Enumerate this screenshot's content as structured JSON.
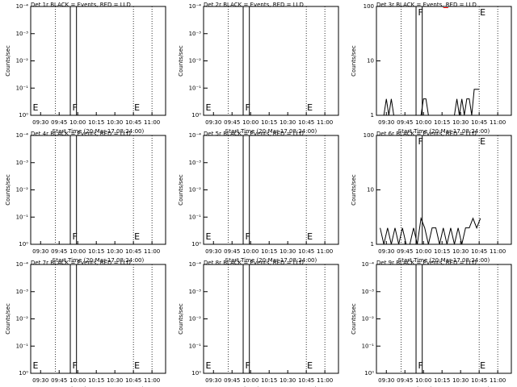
{
  "chart_data": [
    {
      "type": "line",
      "title": "Det 1r BLACK = Events, RED = LLD",
      "ylabel": "Counts/sec",
      "xlabel": "Start Time (20-Mar-17 08:24:00)",
      "xlim": [
        "09:22",
        "11:11"
      ],
      "xticks": [
        "09:30",
        "09:45",
        "10:00",
        "10:15",
        "10:30",
        "10:45",
        "11:00"
      ],
      "log": true,
      "ylim": [
        1,
        0.0001
      ],
      "yticks": [
        {
          "value": 1,
          "label": "10⁰"
        },
        {
          "value": 0.1,
          "label": "10⁻¹"
        },
        {
          "value": 0.01,
          "label": "10⁻²"
        },
        {
          "value": 0.001,
          "label": "10⁻³"
        },
        {
          "value": 0.0001,
          "label": "10⁻⁴"
        }
      ],
      "vlines": [
        {
          "x": "09:42",
          "style": "dotted"
        },
        {
          "x": "09:54",
          "style": "solid"
        },
        {
          "x": "09:59",
          "style": "solid"
        },
        {
          "x": "10:45",
          "style": "dotted"
        },
        {
          "x": "11:00",
          "style": "dotted"
        }
      ],
      "annotations": [
        {
          "text": "E",
          "x": "09:23",
          "position": "bottom"
        },
        {
          "text": "F",
          "x": "09:55",
          "position": "bottom"
        },
        {
          "text": "E",
          "x": "10:45",
          "position": "bottom"
        }
      ]
    },
    {
      "type": "line",
      "title": "Det 2r BLACK = Events, RED = LLD",
      "ylabel": "Counts/sec",
      "xlabel": "Start Time (20-Mar-17 08:24:00)",
      "xlim": [
        "09:22",
        "11:11"
      ],
      "xticks": [
        "09:30",
        "09:45",
        "10:00",
        "10:15",
        "10:30",
        "10:45",
        "11:00"
      ],
      "log": true,
      "ylim": [
        1,
        0.0001
      ],
      "yticks": [
        {
          "value": 1,
          "label": "10⁰"
        },
        {
          "value": 0.1,
          "label": "10⁻¹"
        },
        {
          "value": 0.01,
          "label": "10⁻²"
        },
        {
          "value": 0.001,
          "label": "10⁻³"
        },
        {
          "value": 0.0001,
          "label": "10⁻⁴"
        }
      ],
      "vlines": [
        {
          "x": "09:42",
          "style": "dotted"
        },
        {
          "x": "09:54",
          "style": "solid"
        },
        {
          "x": "09:59",
          "style": "solid"
        },
        {
          "x": "10:45",
          "style": "dotted"
        },
        {
          "x": "11:00",
          "style": "dotted"
        }
      ],
      "annotations": [
        {
          "text": "E",
          "x": "09:23",
          "position": "bottom"
        },
        {
          "text": "F",
          "x": "09:55",
          "position": "bottom"
        },
        {
          "text": "E",
          "x": "10:45",
          "position": "bottom"
        }
      ]
    },
    {
      "type": "line",
      "title": "Det 3r BLACK = Events, RED = LLD",
      "ylabel": "Counts/sec",
      "xlabel": "Start Time (20-Mar-17 08:24:00)",
      "xlim": [
        "09:22",
        "11:11"
      ],
      "xticks": [
        "09:30",
        "09:45",
        "10:00",
        "10:15",
        "10:30",
        "10:45",
        "11:00"
      ],
      "log": true,
      "ylim": [
        1,
        100
      ],
      "yticks": [
        1,
        10,
        100
      ],
      "vlines": [
        {
          "x": "09:42",
          "style": "dotted"
        },
        {
          "x": "09:54",
          "style": "solid"
        },
        {
          "x": "09:59",
          "style": "solid"
        },
        {
          "x": "10:45",
          "style": "dotted"
        },
        {
          "x": "11:00",
          "style": "dotted"
        }
      ],
      "annotations": [
        {
          "text": "F",
          "x": "09:55",
          "position": "top"
        },
        {
          "text": "E",
          "x": "10:45",
          "position": "top"
        }
      ],
      "x": [
        "09:28",
        "09:30",
        "09:32",
        "09:34",
        "09:36",
        "09:38",
        "09:58",
        "10:00",
        "10:02",
        "10:04",
        "10:16",
        "10:20",
        "10:25",
        "10:27",
        "10:29",
        "10:31",
        "10:33",
        "10:35",
        "10:37",
        "10:39",
        "10:41",
        "10:43",
        "10:45"
      ],
      "series": [
        {
          "color": "#000000",
          "values": [
            1,
            2,
            1,
            2,
            1,
            1,
            1,
            2,
            2,
            1,
            1,
            1,
            1,
            2,
            1,
            2,
            1,
            2,
            2,
            1,
            3,
            3,
            3
          ]
        },
        {
          "color": "#ff0000",
          "values": [
            null,
            null,
            null,
            null,
            null,
            null,
            null,
            null,
            null,
            null,
            95,
            95,
            null,
            null,
            null,
            null,
            null,
            null,
            null,
            null,
            null,
            null,
            null
          ]
        }
      ]
    },
    {
      "type": "line",
      "title": "Det 4r BLACK = Events, RED = LLD",
      "ylabel": "Counts/sec",
      "xlabel": "Start Time (20-Mar-17 08:24:00)",
      "xlim": [
        "09:22",
        "11:11"
      ],
      "xticks": [
        "09:30",
        "09:45",
        "10:00",
        "10:15",
        "10:30",
        "10:45",
        "11:00"
      ],
      "log": true,
      "ylim": [
        1,
        0.0001
      ],
      "yticks": [
        {
          "value": 1,
          "label": "10⁰"
        },
        {
          "value": 0.1,
          "label": "10⁻¹"
        },
        {
          "value": 0.01,
          "label": "10⁻²"
        },
        {
          "value": 0.001,
          "label": "10⁻³"
        },
        {
          "value": 0.0001,
          "label": "10⁻⁴"
        }
      ],
      "vlines": [
        {
          "x": "09:42",
          "style": "dotted"
        },
        {
          "x": "09:54",
          "style": "solid"
        },
        {
          "x": "09:59",
          "style": "solid"
        },
        {
          "x": "10:45",
          "style": "dotted"
        },
        {
          "x": "11:00",
          "style": "dotted"
        }
      ],
      "annotations": [
        {
          "text": "F",
          "x": "09:55",
          "position": "bottom"
        },
        {
          "text": "E",
          "x": "10:45",
          "position": "bottom"
        }
      ]
    },
    {
      "type": "line",
      "title": "Det 5r BLACK = Events, RED = LLD",
      "ylabel": "Counts/sec",
      "xlabel": "Start Time (20-Mar-17 08:24:00)",
      "xlim": [
        "09:22",
        "11:11"
      ],
      "xticks": [
        "09:30",
        "09:45",
        "10:00",
        "10:15",
        "10:30",
        "10:45",
        "11:00"
      ],
      "log": true,
      "ylim": [
        1,
        0.0001
      ],
      "yticks": [
        {
          "value": 1,
          "label": "10⁰"
        },
        {
          "value": 0.1,
          "label": "10⁻¹"
        },
        {
          "value": 0.01,
          "label": "10⁻²"
        },
        {
          "value": 0.001,
          "label": "10⁻³"
        },
        {
          "value": 0.0001,
          "label": "10⁻⁴"
        }
      ],
      "vlines": [
        {
          "x": "09:42",
          "style": "dotted"
        },
        {
          "x": "09:54",
          "style": "solid"
        },
        {
          "x": "09:59",
          "style": "solid"
        },
        {
          "x": "10:45",
          "style": "dotted"
        },
        {
          "x": "11:00",
          "style": "dotted"
        }
      ],
      "annotations": [
        {
          "text": "E",
          "x": "09:23",
          "position": "bottom"
        },
        {
          "text": "F",
          "x": "09:55",
          "position": "bottom"
        },
        {
          "text": "E",
          "x": "10:45",
          "position": "bottom"
        }
      ]
    },
    {
      "type": "line",
      "title": "Det 6r BLACK = Events, RED = LLD",
      "ylabel": "Counts/sec",
      "xlabel": "Start Time (20-Mar-17 08:24:00)",
      "xlim": [
        "09:22",
        "11:11"
      ],
      "xticks": [
        "09:30",
        "09:45",
        "10:00",
        "10:15",
        "10:30",
        "10:45",
        "11:00"
      ],
      "log": true,
      "ylim": [
        1,
        100
      ],
      "yticks": [
        1,
        10,
        100
      ],
      "vlines": [
        {
          "x": "09:42",
          "style": "dotted"
        },
        {
          "x": "09:54",
          "style": "solid"
        },
        {
          "x": "09:59",
          "style": "solid"
        },
        {
          "x": "10:45",
          "style": "dotted"
        },
        {
          "x": "11:00",
          "style": "dotted"
        }
      ],
      "annotations": [
        {
          "text": "F",
          "x": "09:55",
          "position": "top"
        },
        {
          "text": "E",
          "x": "10:45",
          "position": "top"
        }
      ],
      "x": [
        "09:25",
        "09:28",
        "09:31",
        "09:34",
        "09:37",
        "09:40",
        "09:43",
        "09:46",
        "09:49",
        "09:52",
        "09:55",
        "09:58",
        "10:01",
        "10:04",
        "10:07",
        "10:10",
        "10:13",
        "10:16",
        "10:19",
        "10:22",
        "10:25",
        "10:28",
        "10:31",
        "10:34",
        "10:37",
        "10:40",
        "10:43",
        "10:46"
      ],
      "series": [
        {
          "color": "#000000",
          "values": [
            2,
            1,
            2,
            1,
            2,
            1,
            2,
            1,
            1,
            2,
            1,
            3,
            2,
            1,
            2,
            2,
            1,
            2,
            1,
            2,
            1,
            2,
            1,
            2,
            2,
            3,
            2,
            3
          ]
        }
      ]
    },
    {
      "type": "line",
      "title": "Det 7r BLACK = Events, RED = LLD",
      "ylabel": "Counts/sec",
      "xlabel": "Start Time (20-Mar-17 08:24:00)",
      "xlim": [
        "09:22",
        "11:11"
      ],
      "xticks": [
        "09:30",
        "09:45",
        "10:00",
        "10:15",
        "10:30",
        "10:45",
        "11:00"
      ],
      "log": true,
      "ylim": [
        1,
        0.0001
      ],
      "yticks": [
        {
          "value": 1,
          "label": "10⁰"
        },
        {
          "value": 0.1,
          "label": "10⁻¹"
        },
        {
          "value": 0.01,
          "label": "10⁻²"
        },
        {
          "value": 0.001,
          "label": "10⁻³"
        },
        {
          "value": 0.0001,
          "label": "10⁻⁴"
        }
      ],
      "vlines": [
        {
          "x": "09:42",
          "style": "dotted"
        },
        {
          "x": "09:54",
          "style": "solid"
        },
        {
          "x": "09:59",
          "style": "solid"
        },
        {
          "x": "10:45",
          "style": "dotted"
        },
        {
          "x": "11:00",
          "style": "dotted"
        }
      ],
      "annotations": [
        {
          "text": "E",
          "x": "09:23",
          "position": "bottom"
        },
        {
          "text": "F",
          "x": "09:55",
          "position": "bottom"
        },
        {
          "text": "E",
          "x": "10:45",
          "position": "bottom"
        }
      ]
    },
    {
      "type": "line",
      "title": "Det 8r BLACK = Events, RED = LLD",
      "ylabel": "Counts/sec",
      "xlabel": "Start Time (20-Mar-17 08:24:00)",
      "xlim": [
        "09:22",
        "11:11"
      ],
      "xticks": [
        "09:30",
        "09:45",
        "10:00",
        "10:15",
        "10:30",
        "10:45",
        "11:00"
      ],
      "log": true,
      "ylim": [
        1,
        0.0001
      ],
      "yticks": [
        {
          "value": 1,
          "label": "10⁰"
        },
        {
          "value": 0.1,
          "label": "10⁻¹"
        },
        {
          "value": 0.01,
          "label": "10⁻²"
        },
        {
          "value": 0.001,
          "label": "10⁻³"
        },
        {
          "value": 0.0001,
          "label": "10⁻⁴"
        }
      ],
      "vlines": [
        {
          "x": "09:42",
          "style": "dotted"
        },
        {
          "x": "09:54",
          "style": "solid"
        },
        {
          "x": "09:59",
          "style": "solid"
        },
        {
          "x": "10:45",
          "style": "dotted"
        },
        {
          "x": "11:00",
          "style": "dotted"
        }
      ],
      "annotations": [
        {
          "text": "E",
          "x": "09:23",
          "position": "bottom"
        },
        {
          "text": "F",
          "x": "09:55",
          "position": "bottom"
        },
        {
          "text": "E",
          "x": "10:45",
          "position": "bottom"
        }
      ]
    },
    {
      "type": "line",
      "title": "Det 9r BLACK = Events, RED = LLD",
      "ylabel": "Counts/sec",
      "xlabel": "Start Time (20-Mar-17 08:24:00)",
      "xlim": [
        "09:22",
        "11:11"
      ],
      "xticks": [
        "09:30",
        "09:45",
        "10:00",
        "10:15",
        "10:30",
        "10:45",
        "11:00"
      ],
      "log": true,
      "ylim": [
        1,
        0.0001
      ],
      "yticks": [
        {
          "value": 1,
          "label": "10⁰"
        },
        {
          "value": 0.1,
          "label": "10⁻¹"
        },
        {
          "value": 0.01,
          "label": "10⁻²"
        },
        {
          "value": 0.001,
          "label": "10⁻³"
        },
        {
          "value": 0.0001,
          "label": "10⁻⁴"
        }
      ],
      "vlines": [
        {
          "x": "09:42",
          "style": "dotted"
        },
        {
          "x": "09:54",
          "style": "solid"
        },
        {
          "x": "09:59",
          "style": "solid"
        },
        {
          "x": "10:45",
          "style": "dotted"
        },
        {
          "x": "11:00",
          "style": "dotted"
        }
      ],
      "annotations": [
        {
          "text": "F",
          "x": "09:55",
          "position": "bottom"
        },
        {
          "text": "E",
          "x": "10:45",
          "position": "bottom"
        }
      ]
    }
  ]
}
